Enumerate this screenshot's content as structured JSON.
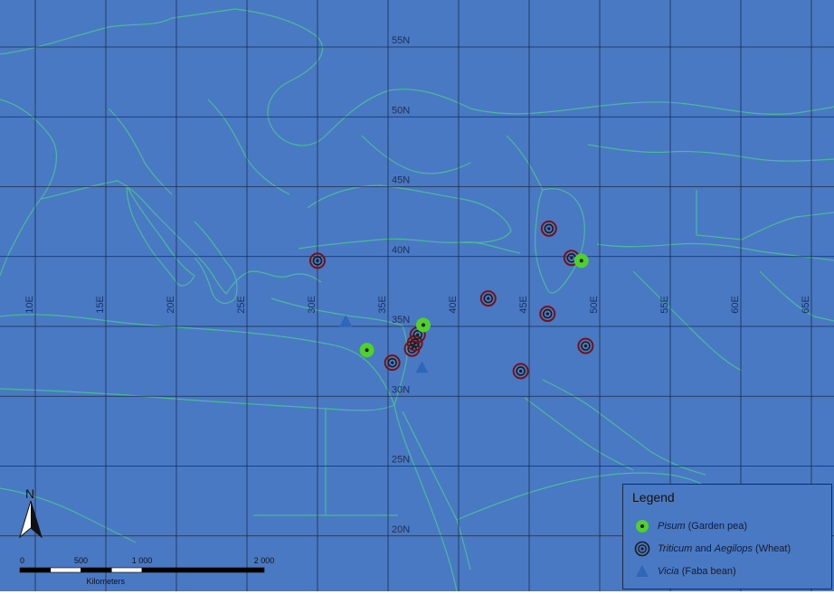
{
  "map": {
    "background_color": "#4a79c4",
    "graticule_color": "#1f2c47",
    "coastline_color": "#49b99b",
    "longitude_labels": [
      "10E",
      "15E",
      "20E",
      "25E",
      "30E",
      "35E",
      "40E",
      "45E",
      "50E",
      "55E",
      "60E",
      "65E"
    ],
    "latitude_labels": [
      "55N",
      "50N",
      "45N",
      "40N",
      "35N",
      "30N",
      "25N",
      "20N"
    ]
  },
  "markers": {
    "pisum": [
      [
        33.5,
        33.3
      ],
      [
        37.5,
        35.1
      ],
      [
        48.7,
        39.7
      ]
    ],
    "wheat": [
      [
        30.0,
        39.7
      ],
      [
        35.3,
        32.4
      ],
      [
        36.7,
        33.4
      ],
      [
        36.9,
        33.8
      ],
      [
        37.1,
        34.4
      ],
      [
        42.1,
        37.0
      ],
      [
        44.4,
        31.8
      ],
      [
        46.3,
        35.9
      ],
      [
        49.0,
        33.6
      ],
      [
        46.4,
        42.0
      ],
      [
        48.0,
        39.9
      ]
    ],
    "vicia": [
      [
        32.0,
        35.3
      ],
      [
        37.4,
        32.0
      ]
    ]
  },
  "legend": {
    "title": "Legend",
    "items": [
      {
        "icon": "pisum-marker-icon",
        "italic": "Pisum",
        "rest": " (Garden pea)",
        "color": "#4fd12c"
      },
      {
        "icon": "wheat-marker-icon",
        "italic": "Triticum",
        "rest": " and ",
        "italic2": "Aegilops",
        "rest2": " (Wheat)",
        "color": "#7a1010"
      },
      {
        "icon": "vicia-marker-icon",
        "italic": "Vicia",
        "rest": " (Faba bean)",
        "color": "#2e67b8"
      }
    ]
  },
  "north_arrow": {
    "label": "N"
  },
  "scale_bar": {
    "ticks": [
      "0",
      "500",
      "1 000",
      "2 000"
    ],
    "tick_values_km": [
      0,
      500,
      1000,
      2000
    ],
    "unit": "Kilometers"
  }
}
